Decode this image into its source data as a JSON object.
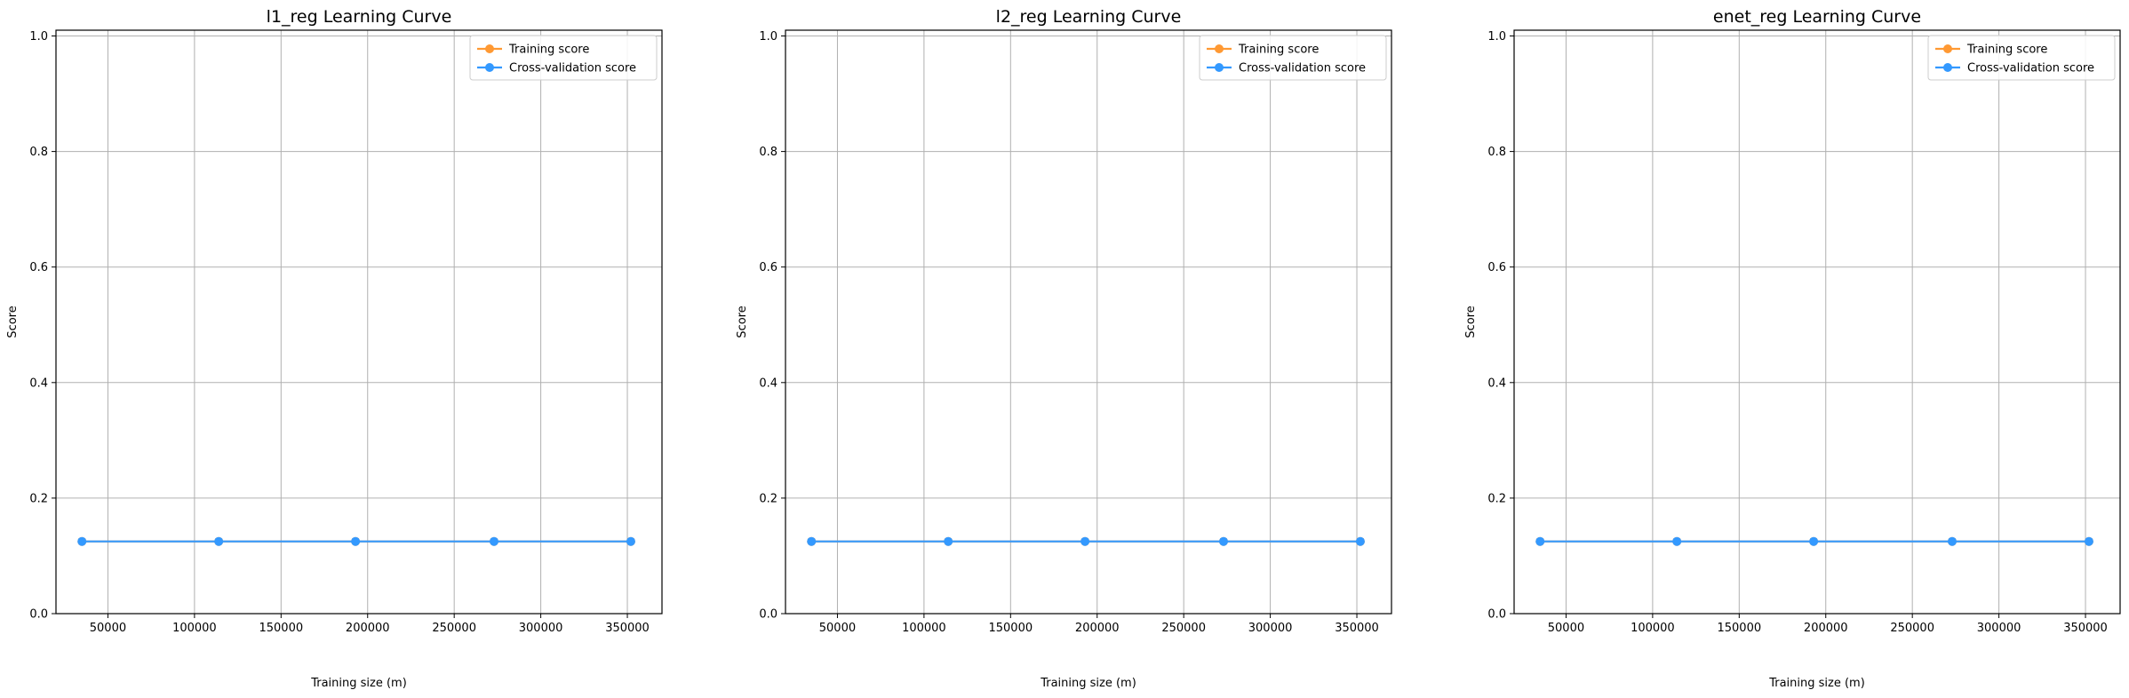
{
  "chart_data": [
    {
      "type": "line",
      "title": "l1_reg Learning Curve",
      "xlabel": "Training size (m)",
      "ylabel": "Score",
      "x": [
        35000,
        114000,
        193000,
        273000,
        352000
      ],
      "xlim": [
        20000,
        370000
      ],
      "ylim": [
        0.0,
        1.01
      ],
      "xticks": [
        50000,
        100000,
        150000,
        200000,
        250000,
        300000,
        350000
      ],
      "yticks": [
        0.0,
        0.2,
        0.4,
        0.6,
        0.8,
        1.0
      ],
      "xtick_labels": [
        "50000",
        "100000",
        "150000",
        "200000",
        "250000",
        "300000",
        "350000"
      ],
      "ytick_labels": [
        "0.0",
        "0.2",
        "0.4",
        "0.6",
        "0.8",
        "1.0"
      ],
      "grid": true,
      "legend": "top-right",
      "series": [
        {
          "name": "Training score",
          "color": "#ff9933",
          "values": [
            0.125,
            0.125,
            0.125,
            0.125,
            0.125
          ]
        },
        {
          "name": "Cross-validation score",
          "color": "#3399ff",
          "values": [
            0.125,
            0.125,
            0.125,
            0.125,
            0.125
          ]
        }
      ]
    },
    {
      "type": "line",
      "title": "l2_reg Learning Curve",
      "xlabel": "Training size (m)",
      "ylabel": "Score",
      "x": [
        35000,
        114000,
        193000,
        273000,
        352000
      ],
      "xlim": [
        20000,
        370000
      ],
      "ylim": [
        0.0,
        1.01
      ],
      "xticks": [
        50000,
        100000,
        150000,
        200000,
        250000,
        300000,
        350000
      ],
      "yticks": [
        0.0,
        0.2,
        0.4,
        0.6,
        0.8,
        1.0
      ],
      "xtick_labels": [
        "50000",
        "100000",
        "150000",
        "200000",
        "250000",
        "300000",
        "350000"
      ],
      "ytick_labels": [
        "0.0",
        "0.2",
        "0.4",
        "0.6",
        "0.8",
        "1.0"
      ],
      "grid": true,
      "legend": "top-right",
      "series": [
        {
          "name": "Training score",
          "color": "#ff9933",
          "values": [
            0.125,
            0.125,
            0.125,
            0.125,
            0.125
          ]
        },
        {
          "name": "Cross-validation score",
          "color": "#3399ff",
          "values": [
            0.125,
            0.125,
            0.125,
            0.125,
            0.125
          ]
        }
      ]
    },
    {
      "type": "line",
      "title": "enet_reg Learning Curve",
      "xlabel": "Training size (m)",
      "ylabel": "Score",
      "x": [
        35000,
        114000,
        193000,
        273000,
        352000
      ],
      "xlim": [
        20000,
        370000
      ],
      "ylim": [
        0.0,
        1.01
      ],
      "xticks": [
        50000,
        100000,
        150000,
        200000,
        250000,
        300000,
        350000
      ],
      "yticks": [
        0.0,
        0.2,
        0.4,
        0.6,
        0.8,
        1.0
      ],
      "xtick_labels": [
        "50000",
        "100000",
        "150000",
        "200000",
        "250000",
        "300000",
        "350000"
      ],
      "ytick_labels": [
        "0.0",
        "0.2",
        "0.4",
        "0.6",
        "0.8",
        "1.0"
      ],
      "grid": true,
      "legend": "top-right",
      "series": [
        {
          "name": "Training score",
          "color": "#ff9933",
          "values": [
            0.125,
            0.125,
            0.125,
            0.125,
            0.125
          ]
        },
        {
          "name": "Cross-validation score",
          "color": "#3399ff",
          "values": [
            0.125,
            0.125,
            0.125,
            0.125,
            0.125
          ]
        }
      ]
    }
  ]
}
